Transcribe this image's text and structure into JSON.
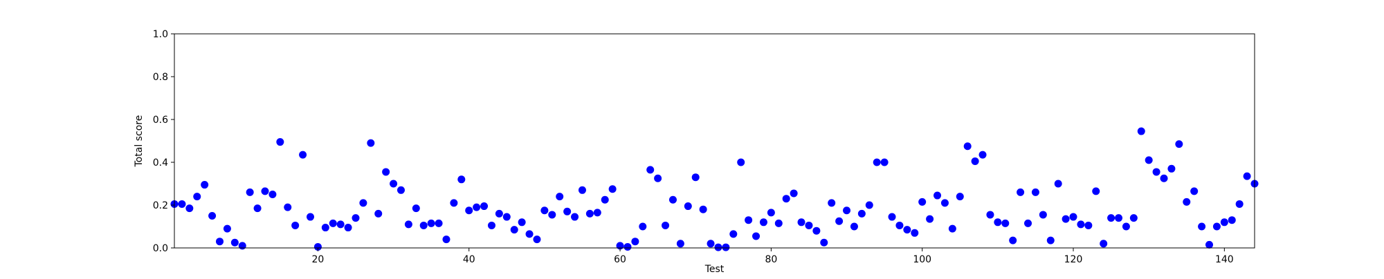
{
  "chart_data": {
    "type": "scatter",
    "title": "",
    "xlabel": "Test",
    "ylabel": "Total score",
    "xlim": [
      1,
      144
    ],
    "ylim": [
      0.0,
      1.0
    ],
    "grid": false,
    "point_color": "#0000ff",
    "xticks": [
      20,
      40,
      60,
      80,
      100,
      120,
      140
    ],
    "xtick_labels": [
      "20",
      "40",
      "60",
      "80",
      "100",
      "120",
      "140"
    ],
    "yticks": [
      0.0,
      0.2,
      0.4,
      0.6,
      0.8,
      1.0
    ],
    "ytick_labels": [
      "0.0",
      "0.2",
      "0.4",
      "0.6",
      "0.8",
      "1.0"
    ],
    "series": [
      {
        "x": [
          1,
          2,
          3,
          4,
          5,
          6,
          7,
          8,
          9,
          10,
          11,
          12,
          13,
          14,
          15,
          16,
          17,
          18,
          19,
          20,
          21,
          22,
          23,
          24,
          25,
          26,
          27,
          28,
          29,
          30,
          31,
          32,
          33,
          34,
          35,
          36,
          37,
          38,
          39,
          40,
          41,
          42,
          43,
          44,
          45,
          46,
          47,
          48,
          49,
          50,
          51,
          52,
          53,
          54,
          55,
          56,
          57,
          58,
          59,
          60,
          61,
          62,
          63,
          64,
          65,
          66,
          67,
          68,
          69,
          70,
          71,
          72,
          73,
          74,
          75,
          76,
          77,
          78,
          79,
          80,
          81,
          82,
          83,
          84,
          85,
          86,
          87,
          88,
          89,
          90,
          91,
          92,
          93,
          94,
          95,
          96,
          97,
          98,
          99,
          100,
          101,
          102,
          103,
          104,
          105,
          106,
          107,
          108,
          109,
          110,
          111,
          112,
          113,
          114,
          115,
          116,
          117,
          118,
          119,
          120,
          121,
          122,
          123,
          124,
          125,
          126,
          127,
          128,
          129,
          130,
          131,
          132,
          133,
          134,
          135,
          136,
          137,
          138,
          139,
          140,
          141,
          142,
          143,
          144
        ],
        "y": [
          0.205,
          0.205,
          0.185,
          0.24,
          0.295,
          0.15,
          0.03,
          0.09,
          0.025,
          0.01,
          0.26,
          0.185,
          0.265,
          0.25,
          0.495,
          0.19,
          0.105,
          0.435,
          0.145,
          0.005,
          0.095,
          0.115,
          0.11,
          0.095,
          0.14,
          0.21,
          0.49,
          0.16,
          0.355,
          0.3,
          0.27,
          0.11,
          0.185,
          0.105,
          0.115,
          0.115,
          0.04,
          0.21,
          0.32,
          0.175,
          0.19,
          0.195,
          0.105,
          0.16,
          0.145,
          0.085,
          0.12,
          0.065,
          0.04,
          0.175,
          0.155,
          0.24,
          0.17,
          0.145,
          0.27,
          0.16,
          0.165,
          0.225,
          0.275,
          0.01,
          0.005,
          0.03,
          0.1,
          0.365,
          0.325,
          0.105,
          0.225,
          0.02,
          0.195,
          0.33,
          0.18,
          0.02,
          0.003,
          0.003,
          0.065,
          0.4,
          0.13,
          0.055,
          0.12,
          0.165,
          0.115,
          0.23,
          0.255,
          0.12,
          0.105,
          0.08,
          0.025,
          0.21,
          0.125,
          0.175,
          0.1,
          0.16,
          0.2,
          0.4,
          0.4,
          0.145,
          0.105,
          0.085,
          0.07,
          0.215,
          0.135,
          0.245,
          0.21,
          0.09,
          0.24,
          0.475,
          0.405,
          0.435,
          0.155,
          0.12,
          0.115,
          0.035,
          0.26,
          0.115,
          0.26,
          0.155,
          0.035,
          0.3,
          0.135,
          0.145,
          0.11,
          0.105,
          0.265,
          0.02,
          0.14,
          0.14,
          0.1,
          0.14,
          0.545,
          0.41,
          0.355,
          0.325,
          0.37,
          0.485,
          0.215,
          0.265,
          0.1,
          0.015,
          0.1,
          0.12,
          0.13,
          0.205,
          0.335,
          0.3
        ]
      }
    ]
  }
}
